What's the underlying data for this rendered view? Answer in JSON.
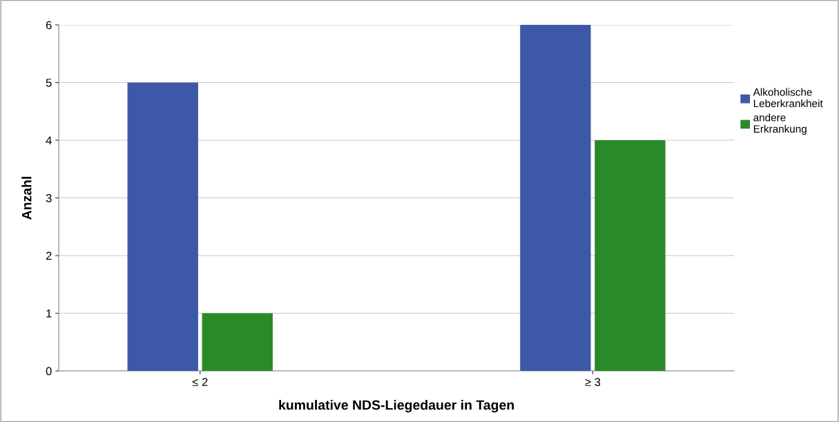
{
  "chart_data": {
    "type": "bar",
    "xlabel": "kumulative NDS-Liegedauer in Tagen",
    "ylabel": "Anzahl",
    "categories": [
      "≤ 2",
      "≥ 3"
    ],
    "series": [
      {
        "name": "Alkoholische Leberkrankheit",
        "color": "#3e58a8",
        "values": [
          5,
          6
        ]
      },
      {
        "name": "andere Erkrankung",
        "color": "#2a8a2a",
        "values": [
          1,
          4
        ]
      }
    ],
    "ylim": [
      0,
      6
    ],
    "yticks": [
      0,
      1,
      2,
      3,
      4,
      5,
      6
    ],
    "grid": "y",
    "legend": "right"
  }
}
